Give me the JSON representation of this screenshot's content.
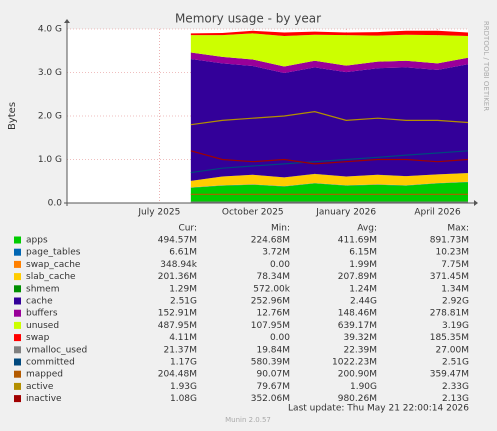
{
  "chart_data": {
    "type": "area",
    "title": "Memory usage - by year",
    "y_label": "Bytes",
    "side_note": "RRDTOOL / TOBI OETIKER",
    "last_update": "Last update: Thu May 21 22:00:14 2026",
    "generator": "Munin 2.0.57",
    "legend_headers": [
      "Cur:",
      "Min:",
      "Avg:",
      "Max:"
    ],
    "grid": true,
    "xlim": [
      "2025-04",
      "2026-05"
    ],
    "xticks": [
      {
        "value": "2025-07",
        "label": "July 2025"
      },
      {
        "value": "2025-10",
        "label": "October 2025"
      },
      {
        "value": "2026-01",
        "label": "January 2026"
      },
      {
        "value": "2026-04",
        "label": "April 2026"
      }
    ],
    "ylim": [
      0,
      4
    ],
    "yticks": [
      {
        "value": 0,
        "label": "0.0"
      },
      {
        "value": 1,
        "label": "1.0 G"
      },
      {
        "value": 2,
        "label": "2.0 G"
      },
      {
        "value": 3,
        "label": "3.0 G"
      },
      {
        "value": 4,
        "label": "4.0 G"
      }
    ],
    "x": [
      "2025-08",
      "2025-09",
      "2025-10",
      "2025-11",
      "2025-12",
      "2026-01",
      "2026-02",
      "2026-03",
      "2026-04",
      "2026-05"
    ],
    "series": [
      {
        "name": "apps",
        "style": "area",
        "color": "#00cc00",
        "stats": [
          "494.57M",
          "224.68M",
          "411.69M",
          "891.73M"
        ],
        "values": [
          0.35,
          0.4,
          0.42,
          0.38,
          0.45,
          0.4,
          0.42,
          0.4,
          0.45,
          0.48
        ]
      },
      {
        "name": "page_tables",
        "style": "area",
        "color": "#0066b3",
        "stats": [
          "6.61M",
          "3.72M",
          "6.15M",
          "10.23M"
        ],
        "values": [
          0.006,
          0.006,
          0.006,
          0.006,
          0.006,
          0.006,
          0.006,
          0.006,
          0.006,
          0.006
        ]
      },
      {
        "name": "swap_cache",
        "style": "area",
        "color": "#ff8000",
        "stats": [
          "348.94k",
          "0.00",
          "1.99M",
          "7.75M"
        ],
        "values": [
          0.002,
          0.002,
          0.002,
          0.002,
          0.002,
          0.002,
          0.002,
          0.002,
          0.002,
          0.002
        ]
      },
      {
        "name": "slab_cache",
        "style": "area",
        "color": "#ffcc00",
        "stats": [
          "201.36M",
          "78.34M",
          "207.89M",
          "371.45M"
        ],
        "values": [
          0.15,
          0.2,
          0.22,
          0.2,
          0.21,
          0.2,
          0.22,
          0.21,
          0.2,
          0.2
        ]
      },
      {
        "name": "shmem",
        "style": "area",
        "color": "#008f00",
        "stats": [
          "1.29M",
          "572.00k",
          "1.24M",
          "1.34M"
        ],
        "values": [
          0.001,
          0.001,
          0.001,
          0.001,
          0.001,
          0.001,
          0.001,
          0.001,
          0.001,
          0.001
        ]
      },
      {
        "name": "cache",
        "style": "area",
        "color": "#330099",
        "stats": [
          "2.51G",
          "252.96M",
          "2.44G",
          "2.92G"
        ],
        "values": [
          2.8,
          2.6,
          2.5,
          2.4,
          2.45,
          2.4,
          2.45,
          2.5,
          2.4,
          2.5
        ]
      },
      {
        "name": "buffers",
        "style": "area",
        "color": "#990099",
        "stats": [
          "152.91M",
          "12.76M",
          "148.46M",
          "278.81M"
        ],
        "values": [
          0.15,
          0.15,
          0.15,
          0.15,
          0.15,
          0.15,
          0.15,
          0.15,
          0.15,
          0.15
        ]
      },
      {
        "name": "unused",
        "style": "area",
        "color": "#ccff00",
        "stats": [
          "487.95M",
          "107.95M",
          "639.17M",
          "3.19G"
        ],
        "values": [
          0.4,
          0.5,
          0.6,
          0.7,
          0.6,
          0.7,
          0.6,
          0.6,
          0.65,
          0.5
        ]
      },
      {
        "name": "swap",
        "style": "area",
        "color": "#ff0000",
        "stats": [
          "4.11M",
          "0.00",
          "39.32M",
          "185.35M"
        ],
        "values": [
          0.04,
          0.05,
          0.06,
          0.08,
          0.07,
          0.06,
          0.08,
          0.09,
          0.1,
          0.08
        ]
      },
      {
        "name": "vmalloc_used",
        "style": "line",
        "color": "#808080",
        "stats": [
          "21.37M",
          "19.84M",
          "22.39M",
          "27.00M"
        ],
        "values": [
          0.02,
          0.02,
          0.02,
          0.02,
          0.02,
          0.02,
          0.02,
          0.02,
          0.02,
          0.02
        ]
      },
      {
        "name": "committed",
        "style": "line",
        "color": "#00487d",
        "stats": [
          "1.17G",
          "580.39M",
          "1022.23M",
          "2.51G"
        ],
        "values": [
          0.7,
          0.8,
          0.85,
          0.9,
          0.95,
          1.0,
          1.05,
          1.1,
          1.15,
          1.2
        ]
      },
      {
        "name": "mapped",
        "style": "line",
        "color": "#b35a00",
        "stats": [
          "204.48M",
          "90.07M",
          "200.90M",
          "359.47M"
        ],
        "values": [
          0.2,
          0.2,
          0.2,
          0.2,
          0.2,
          0.2,
          0.2,
          0.2,
          0.2,
          0.2
        ]
      },
      {
        "name": "active",
        "style": "line",
        "color": "#b38f00",
        "stats": [
          "1.93G",
          "79.67M",
          "1.90G",
          "2.33G"
        ],
        "values": [
          1.8,
          1.9,
          1.95,
          2.0,
          2.1,
          1.9,
          1.95,
          1.9,
          1.9,
          1.85
        ]
      },
      {
        "name": "inactive",
        "style": "line",
        "color": "#a00000",
        "stats": [
          "1.08G",
          "352.06M",
          "980.26M",
          "2.13G"
        ],
        "values": [
          1.2,
          1.0,
          0.95,
          1.0,
          0.9,
          0.95,
          1.0,
          1.0,
          0.95,
          1.0
        ]
      }
    ]
  }
}
